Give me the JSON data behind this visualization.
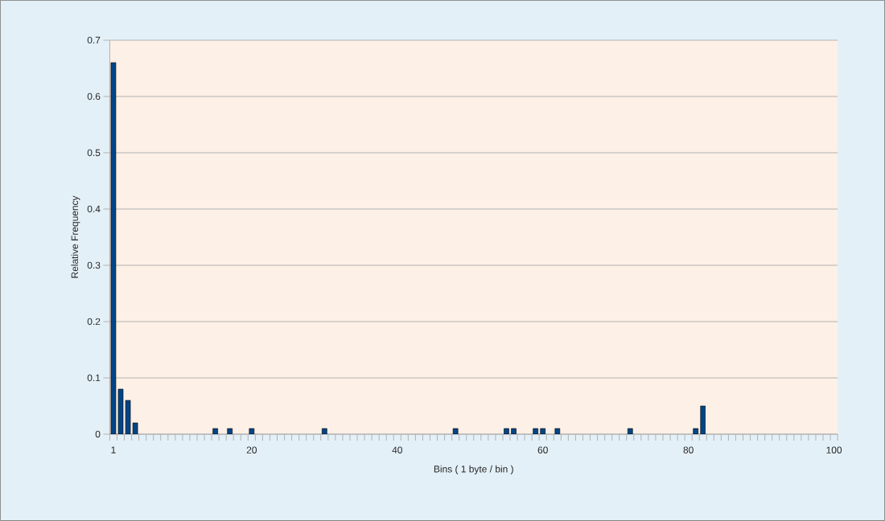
{
  "chart_data": {
    "type": "bar",
    "xlabel": "Bins       ( 1 byte / bin )",
    "ylabel": "Relative Frequency",
    "categories": [
      "1",
      null,
      null,
      null,
      null,
      null,
      null,
      null,
      null,
      null,
      null,
      null,
      null,
      null,
      null,
      null,
      null,
      null,
      null,
      "20",
      null,
      null,
      null,
      null,
      null,
      null,
      null,
      null,
      null,
      null,
      null,
      null,
      null,
      null,
      null,
      null,
      null,
      null,
      null,
      "40",
      null,
      null,
      null,
      null,
      null,
      null,
      null,
      null,
      null,
      null,
      null,
      null,
      null,
      null,
      null,
      null,
      null,
      null,
      null,
      "60",
      null,
      null,
      null,
      null,
      null,
      null,
      null,
      null,
      null,
      null,
      null,
      null,
      null,
      null,
      null,
      null,
      null,
      null,
      null,
      "80",
      null,
      null,
      null,
      null,
      null,
      null,
      null,
      null,
      null,
      null,
      null,
      null,
      null,
      null,
      null,
      null,
      null,
      null,
      null,
      "100"
    ],
    "values": [
      0.66,
      0.08,
      0.06,
      0.02,
      0,
      0,
      0,
      0,
      0,
      0,
      0,
      0,
      0,
      0,
      0.01,
      0,
      0.01,
      0,
      0,
      0.01,
      0,
      0,
      0,
      0,
      0,
      0,
      0,
      0,
      0,
      0.01,
      0,
      0,
      0,
      0,
      0,
      0,
      0,
      0,
      0,
      0,
      0,
      0,
      0,
      0,
      0,
      0,
      0,
      0.01,
      0,
      0,
      0,
      0,
      0,
      0,
      0.01,
      0.01,
      0,
      0,
      0.01,
      0.01,
      0,
      0.01,
      0,
      0,
      0,
      0,
      0,
      0,
      0,
      0,
      0,
      0.01,
      0,
      0,
      0,
      0,
      0,
      0,
      0,
      0,
      0.01,
      0.05,
      0,
      0,
      0,
      0,
      0,
      0,
      0,
      0,
      0,
      0,
      0,
      0,
      0,
      0,
      0,
      0,
      0,
      0
    ],
    "color": "#004586",
    "ylim": [
      0,
      0.7
    ],
    "yticks": [
      0,
      0.1,
      0.2,
      0.3,
      0.4,
      0.5,
      0.6,
      0.7
    ],
    "grid": "y"
  }
}
